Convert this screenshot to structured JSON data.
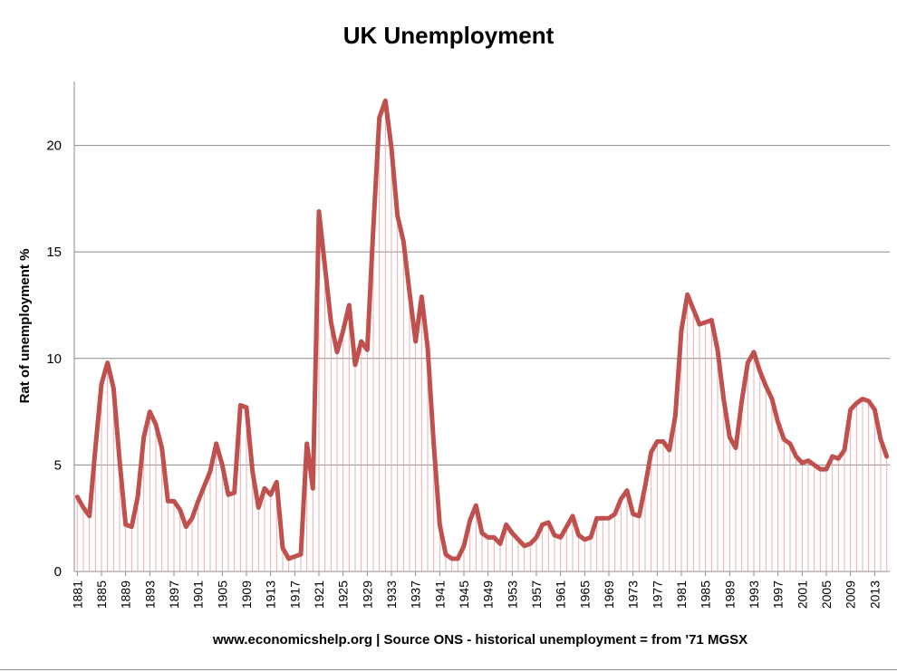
{
  "chart_data": {
    "type": "line",
    "title": "UK Unemployment",
    "y_label": "Rat of unemployment %",
    "x_label": "www.economicshelp.org | Source ONS - historical unemployment = from '71 MGSX",
    "x": [
      1881,
      1882,
      1883,
      1884,
      1885,
      1886,
      1887,
      1888,
      1889,
      1890,
      1891,
      1892,
      1893,
      1894,
      1895,
      1896,
      1897,
      1898,
      1899,
      1900,
      1901,
      1902,
      1903,
      1904,
      1905,
      1906,
      1907,
      1908,
      1909,
      1910,
      1911,
      1912,
      1913,
      1914,
      1915,
      1916,
      1917,
      1918,
      1919,
      1920,
      1921,
      1922,
      1923,
      1924,
      1925,
      1926,
      1927,
      1928,
      1929,
      1930,
      1931,
      1932,
      1933,
      1934,
      1935,
      1936,
      1937,
      1938,
      1939,
      1940,
      1941,
      1942,
      1943,
      1944,
      1945,
      1946,
      1947,
      1948,
      1949,
      1950,
      1951,
      1952,
      1953,
      1954,
      1955,
      1956,
      1957,
      1958,
      1959,
      1960,
      1961,
      1962,
      1963,
      1964,
      1965,
      1966,
      1967,
      1968,
      1969,
      1970,
      1971,
      1972,
      1973,
      1974,
      1975,
      1976,
      1977,
      1978,
      1979,
      1980,
      1981,
      1982,
      1983,
      1984,
      1985,
      1986,
      1987,
      1988,
      1989,
      1990,
      1991,
      1992,
      1993,
      1994,
      1995,
      1996,
      1997,
      1998,
      1999,
      2000,
      2001,
      2002,
      2003,
      2004,
      2005,
      2006,
      2007,
      2008,
      2009,
      2010,
      2011,
      2012,
      2013,
      2014,
      2015
    ],
    "values": [
      3.5,
      3.0,
      2.6,
      5.8,
      8.8,
      9.8,
      8.6,
      5.2,
      2.2,
      2.1,
      3.5,
      6.3,
      7.5,
      6.9,
      5.8,
      3.3,
      3.3,
      2.9,
      2.1,
      2.5,
      3.3,
      4.0,
      4.7,
      6.0,
      5.0,
      3.6,
      3.7,
      7.8,
      7.7,
      4.7,
      3.0,
      3.9,
      3.6,
      4.2,
      1.1,
      0.6,
      0.7,
      0.8,
      6.0,
      3.9,
      16.9,
      14.3,
      11.7,
      10.3,
      11.3,
      12.5,
      9.7,
      10.8,
      10.4,
      16.1,
      21.3,
      22.1,
      19.9,
      16.7,
      15.5,
      13.1,
      10.8,
      12.9,
      10.5,
      6.0,
      2.2,
      0.8,
      0.6,
      0.6,
      1.2,
      2.4,
      3.1,
      1.8,
      1.6,
      1.6,
      1.3,
      2.2,
      1.8,
      1.5,
      1.2,
      1.3,
      1.6,
      2.2,
      2.3,
      1.7,
      1.6,
      2.1,
      2.6,
      1.7,
      1.5,
      1.6,
      2.5,
      2.5,
      2.5,
      2.7,
      3.4,
      3.8,
      2.7,
      2.6,
      4.0,
      5.6,
      6.1,
      6.1,
      5.7,
      7.3,
      11.3,
      13.0,
      12.3,
      11.6,
      11.7,
      11.8,
      10.4,
      8.1,
      6.3,
      5.8,
      8.0,
      9.8,
      10.3,
      9.4,
      8.7,
      8.1,
      7.0,
      6.2,
      6.0,
      5.4,
      5.1,
      5.2,
      5.0,
      4.8,
      4.8,
      5.4,
      5.3,
      5.7,
      7.6,
      7.9,
      8.1,
      8.0,
      7.6,
      6.2,
      5.4
    ],
    "color": "#c0504d",
    "drop_line_color": "#eab0b0",
    "xlim": [
      1880.5,
      2015.5
    ],
    "xticks": [
      1881,
      1885,
      1889,
      1893,
      1897,
      1901,
      1905,
      1909,
      1913,
      1917,
      1921,
      1925,
      1929,
      1933,
      1937,
      1941,
      1945,
      1949,
      1953,
      1957,
      1961,
      1965,
      1969,
      1973,
      1977,
      1981,
      1985,
      1989,
      1993,
      1997,
      2001,
      2005,
      2009,
      2013
    ],
    "ylim": [
      0,
      23
    ],
    "yticks": [
      0,
      5,
      10,
      15,
      20
    ],
    "grid": true
  }
}
